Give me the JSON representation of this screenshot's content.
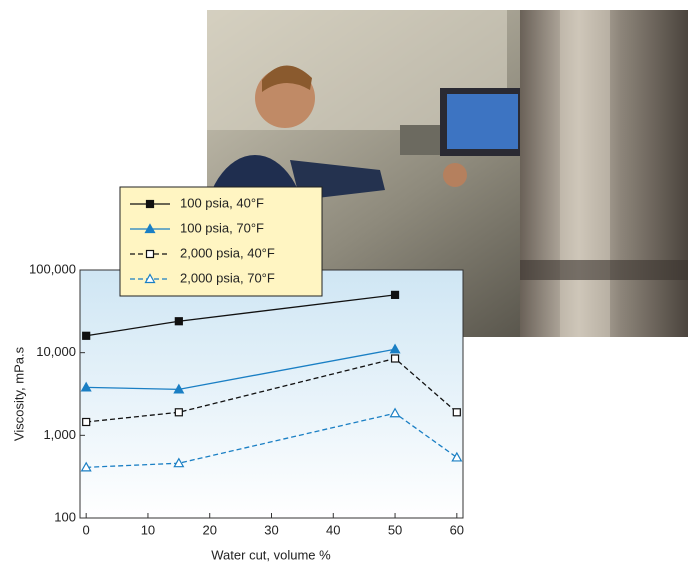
{
  "chart_data": {
    "type": "line",
    "x_label": "Water cut, volume %",
    "y_label": "Viscosity, mPa.s",
    "log_y": true,
    "xlim": [
      -1,
      61
    ],
    "xticks": [
      0,
      10,
      20,
      30,
      40,
      50,
      60
    ],
    "ylim": [
      100,
      100000
    ],
    "yticks": [
      100,
      {
        "value": 1000,
        "label": "1,000"
      },
      {
        "value": 10000,
        "label": "10,000"
      },
      {
        "value": 100000,
        "label": "100,000"
      }
    ],
    "series": [
      {
        "name": "100 psia, 40°F",
        "color": "#111111",
        "marker": "square",
        "filled": true,
        "dashed": false,
        "x": [
          0,
          15,
          50
        ],
        "values": [
          16000,
          24000,
          50000
        ]
      },
      {
        "name": "100 psia, 70°F",
        "color": "#1a7fc4",
        "marker": "triangle",
        "filled": true,
        "dashed": false,
        "x": [
          0,
          15,
          50
        ],
        "values": [
          3800,
          3600,
          11000
        ]
      },
      {
        "name": "2,000 psia, 40°F",
        "color": "#111111",
        "marker": "square",
        "filled": false,
        "dashed": true,
        "x": [
          0,
          15,
          50,
          60
        ],
        "values": [
          1450,
          1900,
          8500,
          1900
        ]
      },
      {
        "name": "2,000 psia, 70°F",
        "color": "#1a7fc4",
        "marker": "triangle",
        "filled": false,
        "dashed": true,
        "x": [
          0,
          15,
          50,
          60
        ],
        "values": [
          410,
          460,
          1850,
          540
        ]
      }
    ]
  }
}
